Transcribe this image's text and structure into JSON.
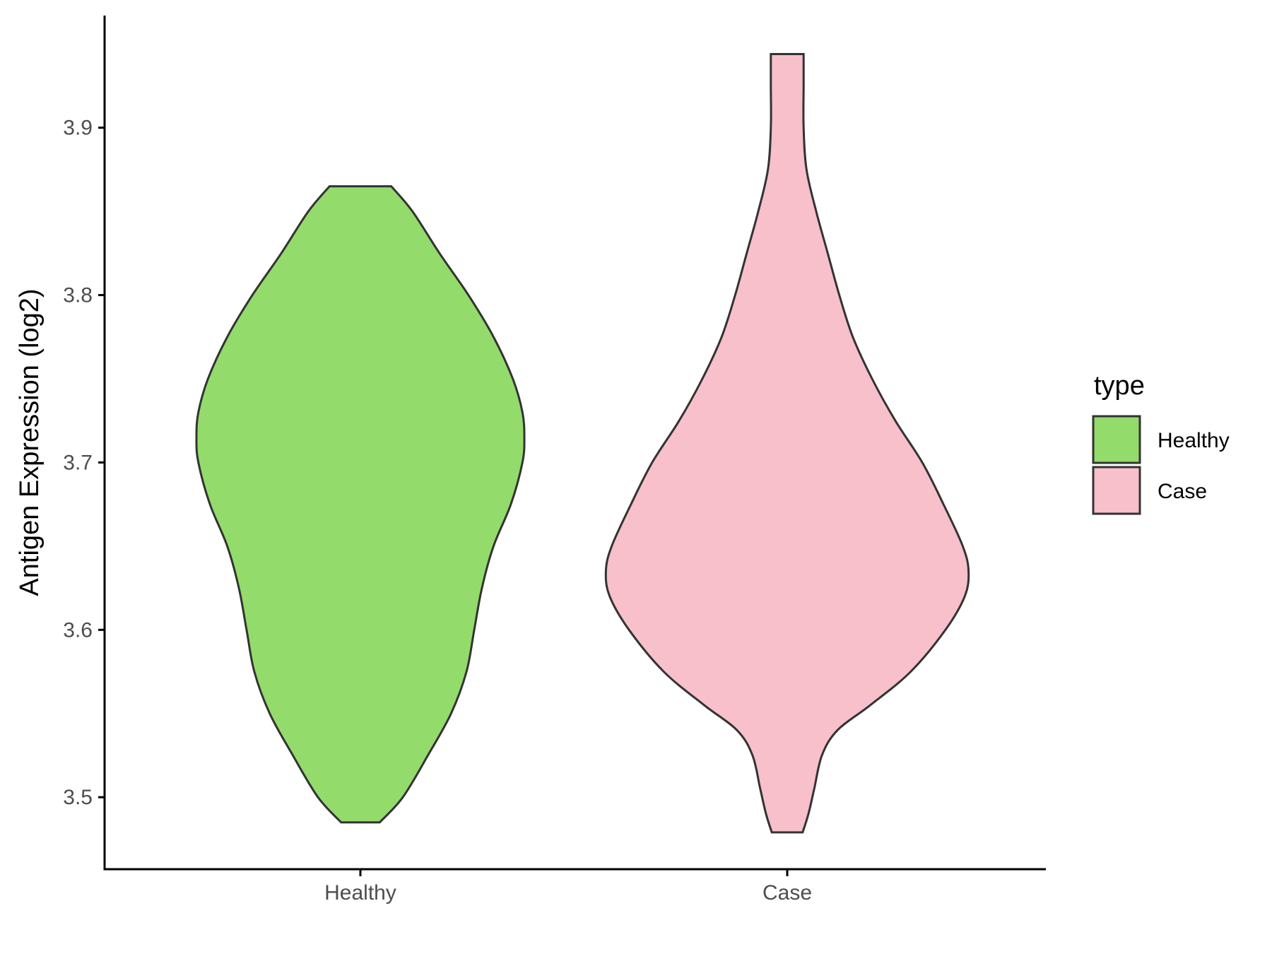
{
  "chart_data": {
    "type": "violin",
    "title": "",
    "xlabel": "",
    "ylabel": "Antigen Expression (log2)",
    "categories": [
      "Healthy",
      "Case"
    ],
    "ylim": [
      3.457,
      3.967
    ],
    "yticks": [
      3.5,
      3.6,
      3.7,
      3.8,
      3.9
    ],
    "ytick_labels": [
      "3.5",
      "3.6",
      "3.7",
      "3.8",
      "3.9"
    ],
    "grid": false,
    "legend": {
      "title": "type",
      "position": "right",
      "entries": [
        {
          "label": "Healthy",
          "color": "#93dc6b"
        },
        {
          "label": "Case",
          "color": "#f7c0cb"
        }
      ]
    },
    "series": [
      {
        "name": "Healthy",
        "color": "#93dc6b",
        "min": 3.485,
        "max": 3.865,
        "density_profile": [
          {
            "y": 3.485,
            "w": 0.1
          },
          {
            "y": 3.5,
            "w": 0.22
          },
          {
            "y": 3.525,
            "w": 0.35
          },
          {
            "y": 3.55,
            "w": 0.47
          },
          {
            "y": 3.575,
            "w": 0.55
          },
          {
            "y": 3.6,
            "w": 0.59
          },
          {
            "y": 3.625,
            "w": 0.63
          },
          {
            "y": 3.65,
            "w": 0.69
          },
          {
            "y": 3.675,
            "w": 0.78
          },
          {
            "y": 3.7,
            "w": 0.84
          },
          {
            "y": 3.715,
            "w": 0.85
          },
          {
            "y": 3.73,
            "w": 0.84
          },
          {
            "y": 3.75,
            "w": 0.79
          },
          {
            "y": 3.775,
            "w": 0.69
          },
          {
            "y": 3.8,
            "w": 0.56
          },
          {
            "y": 3.825,
            "w": 0.41
          },
          {
            "y": 3.85,
            "w": 0.27
          },
          {
            "y": 3.865,
            "w": 0.16
          }
        ]
      },
      {
        "name": "Case",
        "color": "#f7c0cb",
        "min": 3.479,
        "max": 3.944,
        "density_profile": [
          {
            "y": 3.479,
            "w": 0.08
          },
          {
            "y": 3.49,
            "w": 0.11
          },
          {
            "y": 3.505,
            "w": 0.14
          },
          {
            "y": 3.525,
            "w": 0.18
          },
          {
            "y": 3.54,
            "w": 0.26
          },
          {
            "y": 3.555,
            "w": 0.43
          },
          {
            "y": 3.575,
            "w": 0.64
          },
          {
            "y": 3.6,
            "w": 0.82
          },
          {
            "y": 3.62,
            "w": 0.92
          },
          {
            "y": 3.635,
            "w": 0.94
          },
          {
            "y": 3.65,
            "w": 0.91
          },
          {
            "y": 3.675,
            "w": 0.81
          },
          {
            "y": 3.7,
            "w": 0.7
          },
          {
            "y": 3.725,
            "w": 0.56
          },
          {
            "y": 3.75,
            "w": 0.44
          },
          {
            "y": 3.775,
            "w": 0.34
          },
          {
            "y": 3.8,
            "w": 0.27
          },
          {
            "y": 3.825,
            "w": 0.21
          },
          {
            "y": 3.85,
            "w": 0.15
          },
          {
            "y": 3.875,
            "w": 0.1
          },
          {
            "y": 3.9,
            "w": 0.085
          },
          {
            "y": 3.925,
            "w": 0.085
          },
          {
            "y": 3.944,
            "w": 0.085
          }
        ]
      }
    ]
  }
}
